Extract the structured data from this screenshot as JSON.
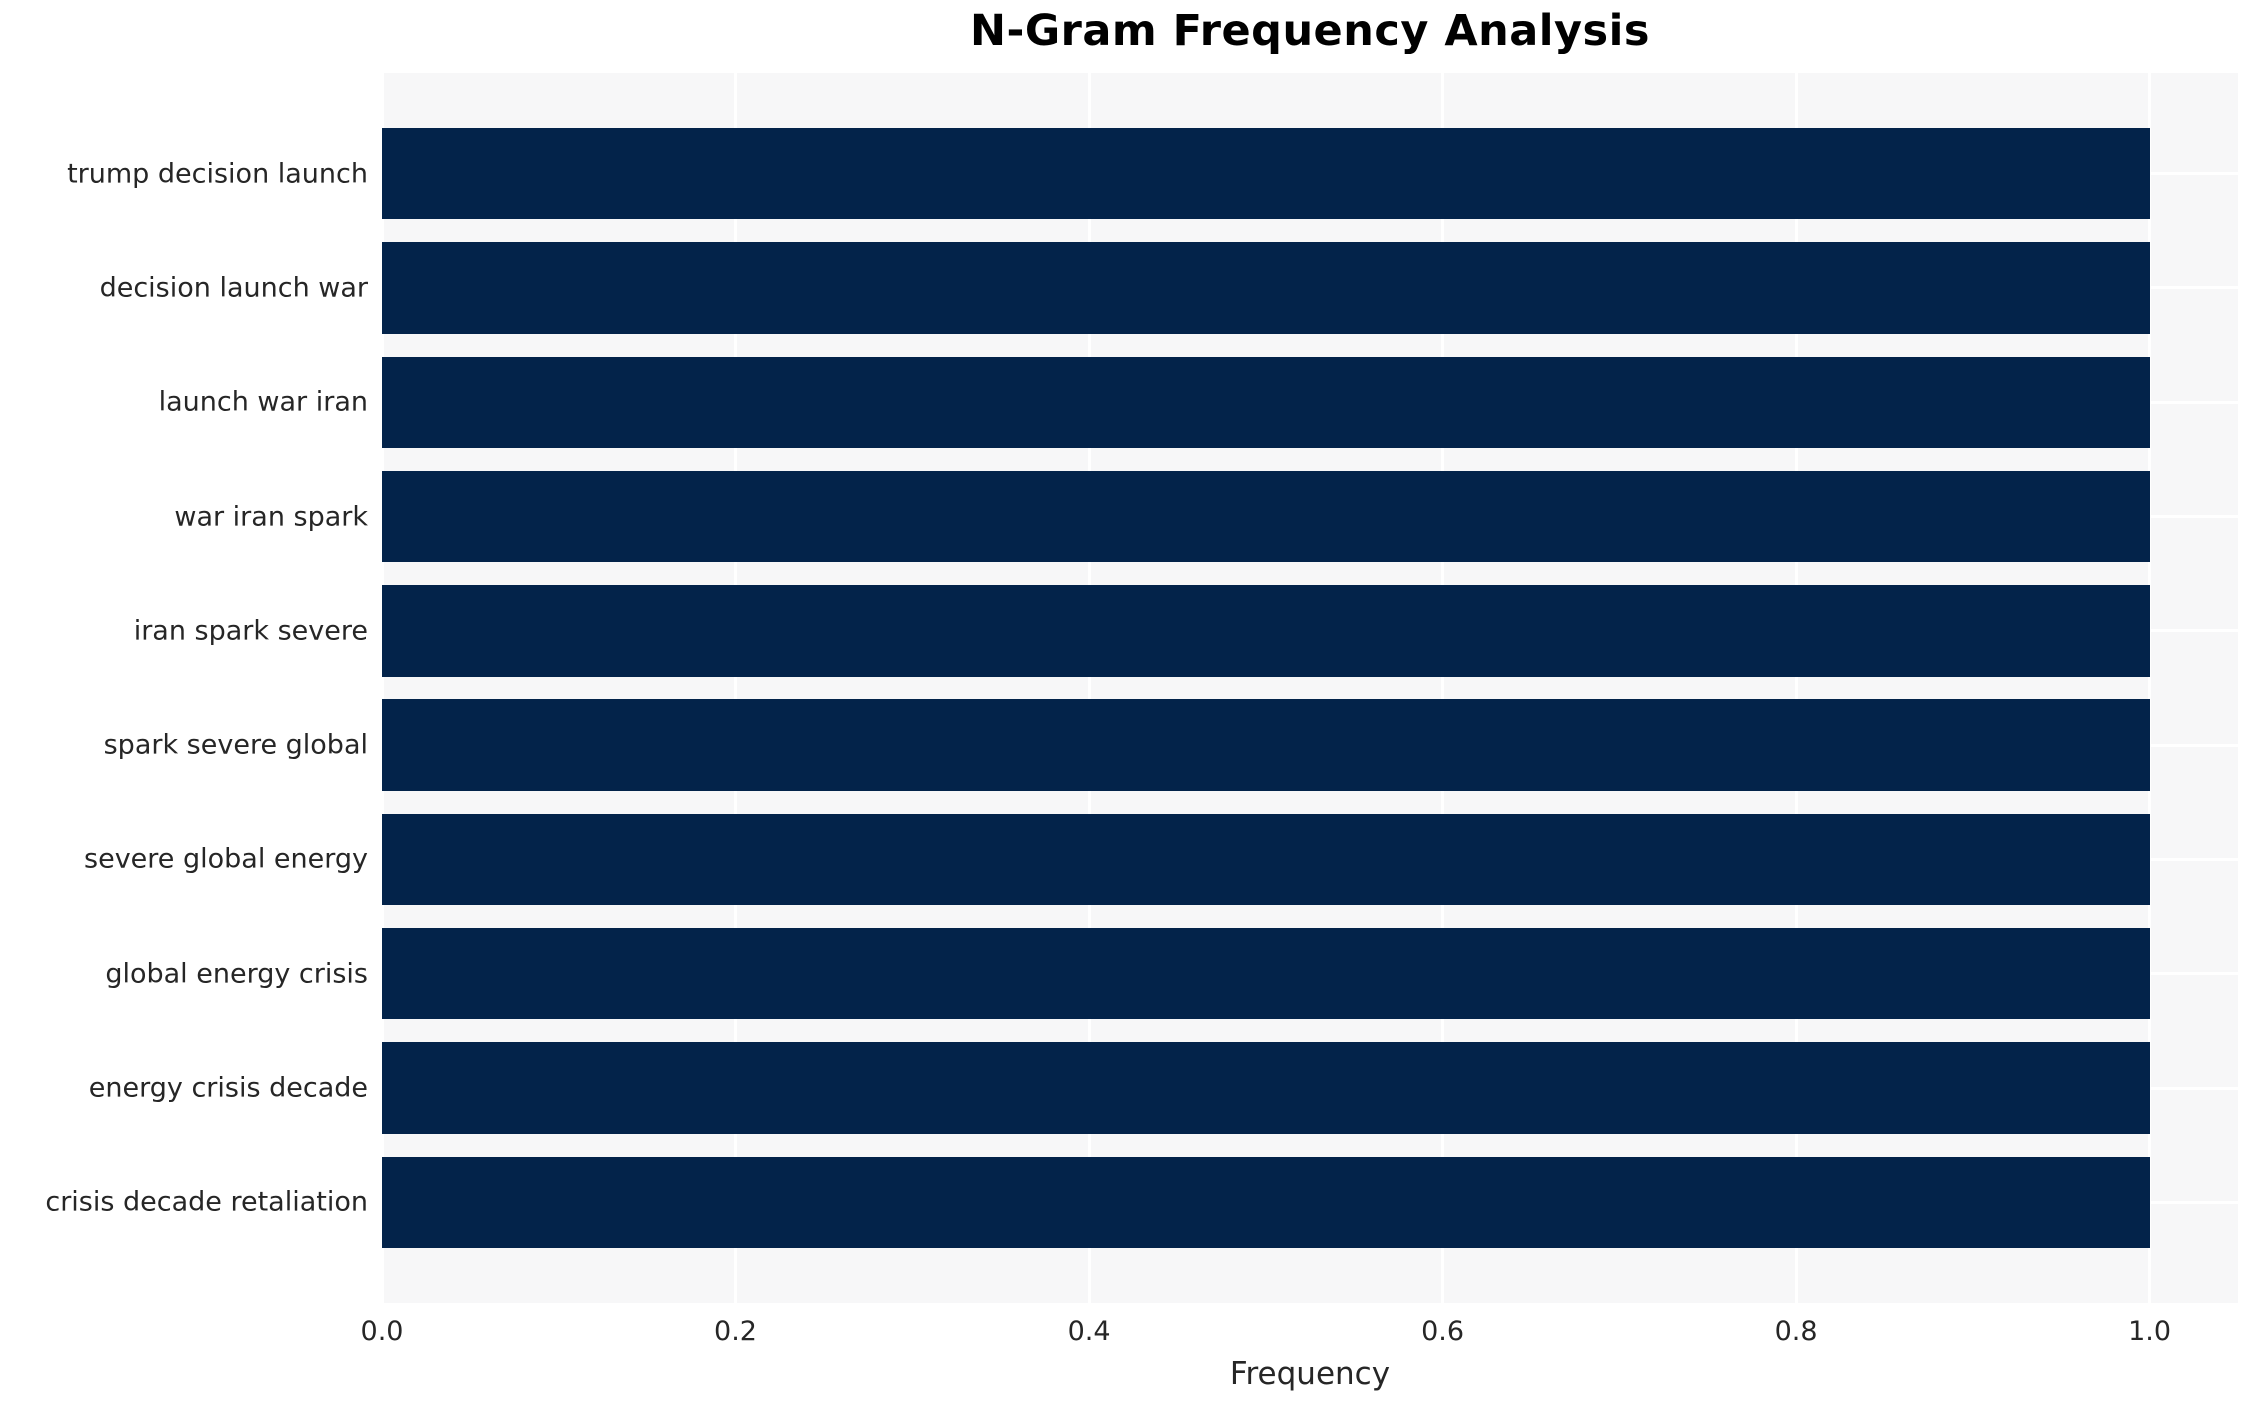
{
  "title": "N-Gram Frequency Analysis",
  "colors": {
    "bar": "#03234a",
    "plot_background": "#f7f7f8",
    "gridline": "#ffffff",
    "tick_text": "#262626",
    "title_text": "#000000"
  },
  "chart_data": {
    "type": "bar",
    "orientation": "horizontal",
    "title": "N-Gram Frequency Analysis",
    "xlabel": "Frequency",
    "ylabel": "",
    "categories": [
      "trump decision launch",
      "decision launch war",
      "launch war iran",
      "war iran spark",
      "iran spark severe",
      "spark severe global",
      "severe global energy",
      "global energy crisis",
      "energy crisis decade",
      "crisis decade retaliation"
    ],
    "values": [
      1.0,
      1.0,
      1.0,
      1.0,
      1.0,
      1.0,
      1.0,
      1.0,
      1.0,
      1.0
    ],
    "xlim": [
      0,
      1.05
    ],
    "xticks": [
      0.0,
      0.2,
      0.4,
      0.6,
      0.8,
      1.0
    ],
    "xtick_labels": [
      "0.0",
      "0.2",
      "0.4",
      "0.6",
      "0.8",
      "1.0"
    ],
    "grid": true,
    "legend": false,
    "bar_band_fraction": 0.8
  }
}
